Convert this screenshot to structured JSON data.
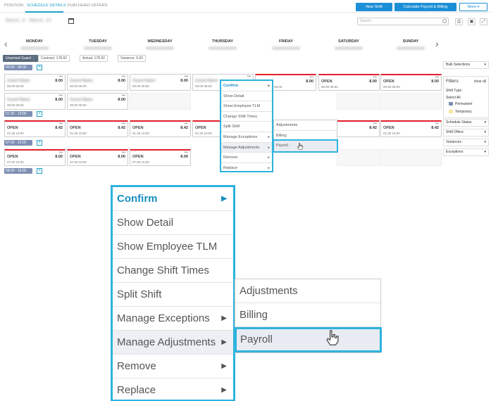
{
  "tabs": [
    "POSITION",
    "SCHEDULE DETAILS",
    "PUBLISHED OFFERS"
  ],
  "buttons": {
    "new_shift": "New Shift",
    "calc": "Calculate Payroll & Billing",
    "more": "More"
  },
  "date_range": "March, 8 - March, 14",
  "search_placeholder": "Search",
  "days": [
    "MONDAY",
    "TUESDAY",
    "WEDNESDAY",
    "THURSDAY",
    "FRIDAY",
    "SATURDAY",
    "SUNDAY"
  ],
  "stats": {
    "unarmed": "Unarmed Guard",
    "contract": "Contract: 178.92",
    "actual": "Actual: 178.92",
    "variance": "Variance: 0.00"
  },
  "groups": [
    "00:00 - 08:00",
    "01:35 - 10:00",
    "07:00 - 15:00",
    "08:00 - 16:00"
  ],
  "shift": {
    "open": "OPEN",
    "hrs_8": "8.00",
    "hrs_842": "8.42",
    "time_a": "00:00  08:00",
    "time_b": "01:35  10:00",
    "time_c": "07:00  15:00",
    "blurred_name": "Guard Name"
  },
  "right_panel": {
    "bulk": "Bulk Selections",
    "filters": "Filters",
    "clear": "clear all",
    "shift_type": "Shift Type",
    "select_all": "Select All",
    "permanent": "Permanent",
    "temporary": "Temporary",
    "schedule_status": "Schedule Status",
    "shift_offers": "Shift Offers",
    "variances": "Variances",
    "exceptions": "Exceptions"
  },
  "menu": [
    "Confirm",
    "Show Detail",
    "Show Employee TLM",
    "Change Shift Times",
    "Split Shift",
    "Manage Exceptions",
    "Manage Adjustments",
    "Remove",
    "Replace"
  ],
  "submenu": [
    "Adjustments",
    "Billing",
    "Payroll"
  ],
  "colors": {
    "accent": "#1ea0c9",
    "open_red": "#e0202a",
    "permanent": "#7d8fb3",
    "temporary": "#f5e79e"
  }
}
